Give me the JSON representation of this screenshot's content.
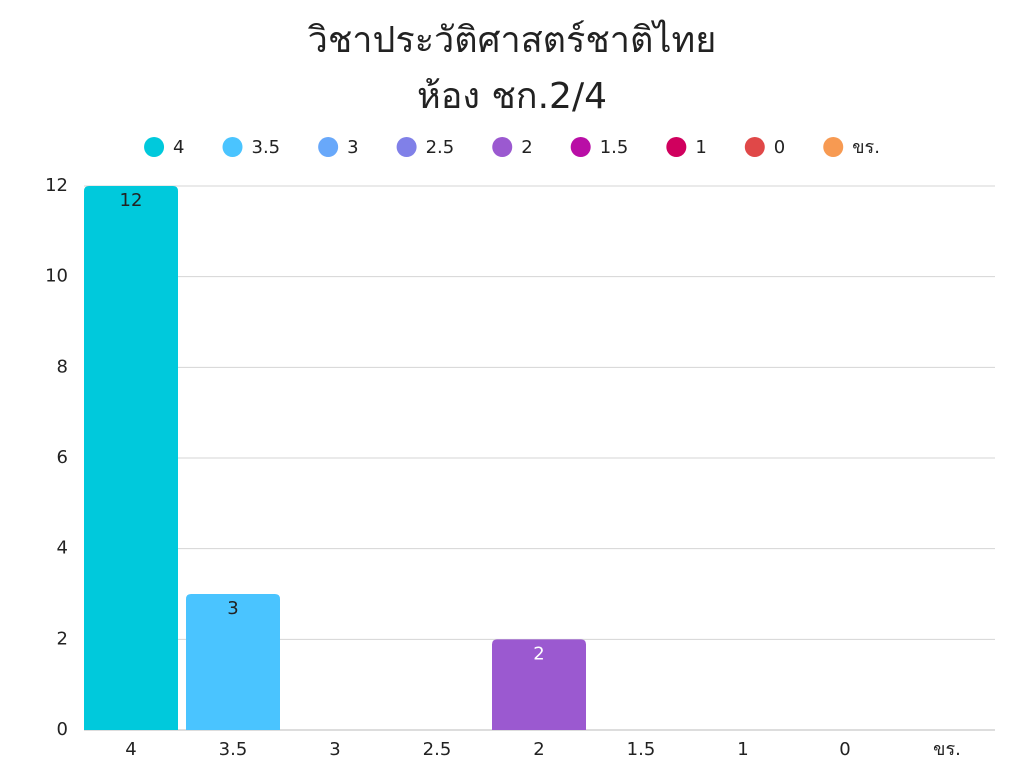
{
  "chart_data": {
    "type": "bar",
    "title": [
      "วิชาประวัติศาสตร์ชาติไทย",
      "ห้อง ชก.2/4"
    ],
    "categories": [
      "4",
      "3.5",
      "3",
      "2.5",
      "2",
      "1.5",
      "1",
      "0",
      "ขร."
    ],
    "values": [
      12,
      3,
      0,
      0,
      2,
      0,
      0,
      0,
      0
    ],
    "colors": [
      "#00c9dc",
      "#4ac4ff",
      "#68a8fa",
      "#8080e8",
      "#9b59d0",
      "#b90ea6",
      "#d0005e",
      "#e04848",
      "#f79a52"
    ],
    "label_colors": [
      "#222222",
      "#222222",
      "#222222",
      "#222222",
      "#ffffff",
      "#ffffff",
      "#ffffff",
      "#ffffff",
      "#222222"
    ],
    "ylim": [
      0,
      12
    ],
    "yticks": [
      0,
      2,
      4,
      6,
      8,
      10,
      12
    ],
    "grid": true,
    "legend": "top"
  }
}
